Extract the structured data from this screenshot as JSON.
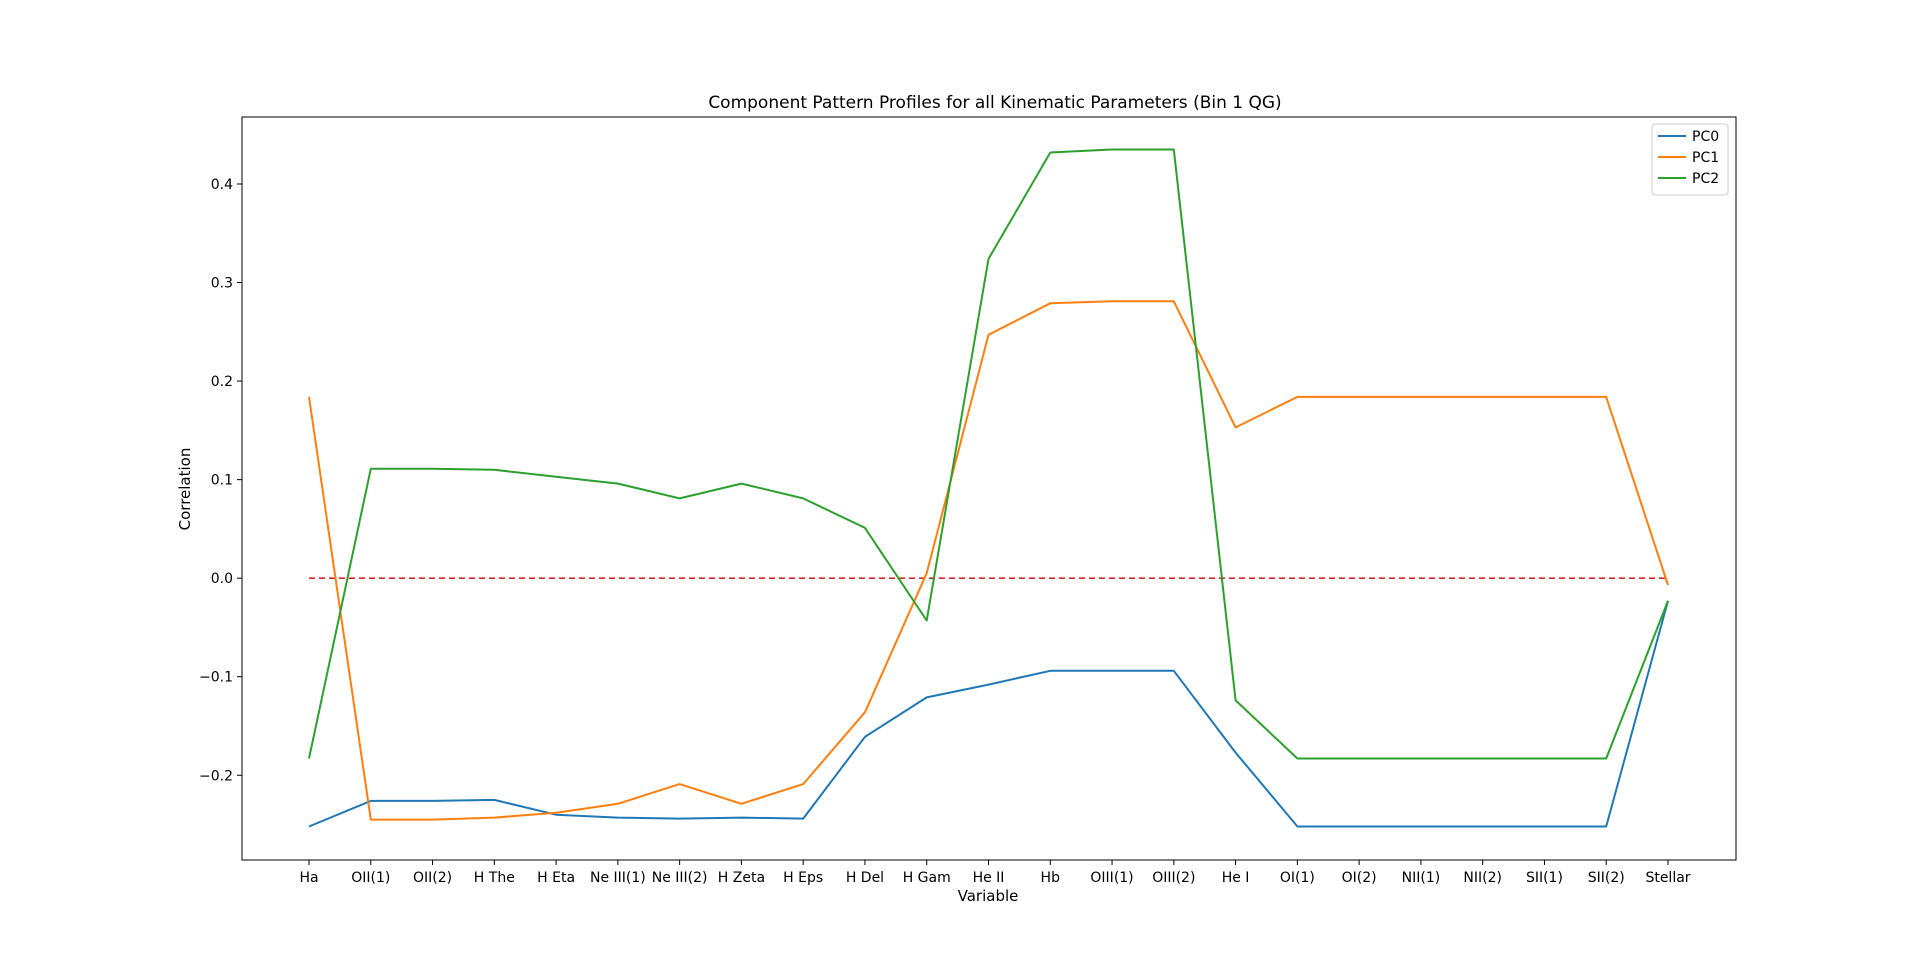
{
  "chart_data": {
    "type": "line",
    "title": "Component Pattern Profiles for all Kinematic Parameters (Bin 1 QG)",
    "xlabel": "Variable",
    "ylabel": "Correlation",
    "ylim": [
      -0.286,
      0.468
    ],
    "yticks": [
      -0.2,
      -0.1,
      0.0,
      0.1,
      0.2,
      0.3,
      0.4
    ],
    "ytick_labels": [
      "−0.2",
      "−0.1",
      "0.0",
      "0.1",
      "0.2",
      "0.3",
      "0.4"
    ],
    "grid": false,
    "legend_position": "top-right",
    "categories": [
      "Ha",
      "OII(1)",
      "OII(2)",
      "H The",
      "H Eta",
      "Ne III(1)",
      "Ne III(2)",
      "H Zeta",
      "H Eps",
      "H Del",
      "H Gam",
      "He II",
      "Hb",
      "OIII(1)",
      "OIII(2)",
      "He I",
      "OI(1)",
      "OI(2)",
      "NII(1)",
      "NII(2)",
      "SII(1)",
      "SII(2)",
      "Stellar"
    ],
    "series": [
      {
        "name": "PC0",
        "color": "#1f77b4",
        "values": [
          -0.252,
          -0.226,
          -0.226,
          -0.225,
          -0.24,
          -0.243,
          -0.244,
          -0.243,
          -0.244,
          -0.161,
          -0.121,
          -0.108,
          -0.094,
          -0.094,
          -0.094,
          -0.177,
          -0.252,
          -0.252,
          -0.252,
          -0.252,
          -0.252,
          -0.252,
          -0.023
        ]
      },
      {
        "name": "PC1",
        "color": "#ff7f0e",
        "values": [
          0.184,
          -0.245,
          -0.245,
          -0.243,
          -0.238,
          -0.229,
          -0.209,
          -0.229,
          -0.209,
          -0.136,
          0.005,
          0.247,
          0.279,
          0.281,
          0.281,
          0.153,
          0.184,
          0.184,
          0.184,
          0.184,
          0.184,
          0.184,
          -0.007
        ]
      },
      {
        "name": "PC2",
        "color": "#2ca02c",
        "values": [
          -0.183,
          0.111,
          0.111,
          0.11,
          0.103,
          0.096,
          0.081,
          0.096,
          0.081,
          0.051,
          -0.043,
          0.324,
          0.432,
          0.435,
          0.435,
          -0.124,
          -0.183,
          -0.183,
          -0.183,
          -0.183,
          -0.183,
          -0.183,
          -0.023
        ]
      }
    ],
    "reference_line": {
      "y": 0.0,
      "color": "#d62728",
      "style": "dashed"
    }
  }
}
